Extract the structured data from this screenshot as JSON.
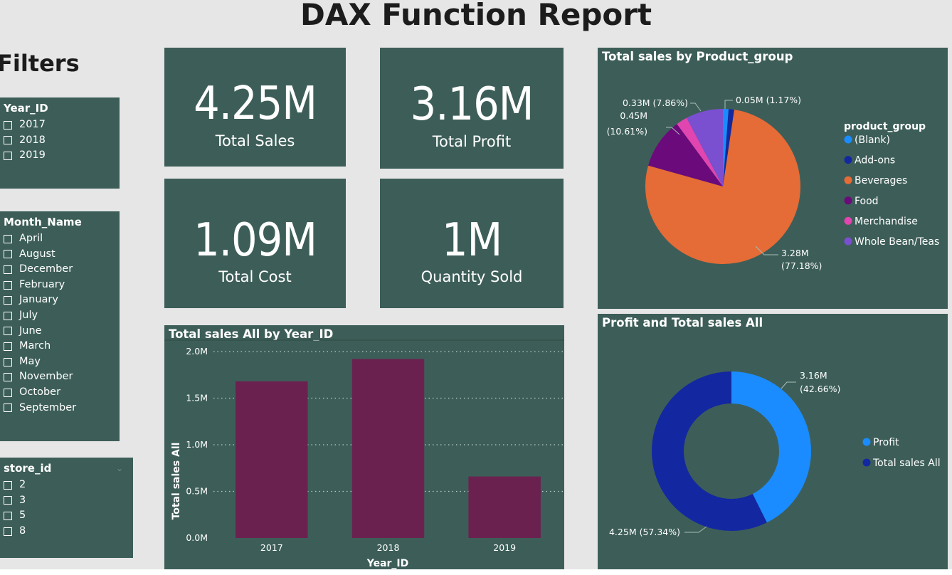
{
  "report": {
    "title": "DAX Function Report",
    "filters_heading": "Filters"
  },
  "slicers": {
    "year": {
      "title": "Year_ID",
      "items": [
        "2017",
        "2018",
        "2019"
      ]
    },
    "month": {
      "title": "Month_Name",
      "items": [
        "April",
        "August",
        "December",
        "February",
        "January",
        "July",
        "June",
        "March",
        "May",
        "November",
        "October",
        "September"
      ]
    },
    "store": {
      "title": "store_id",
      "items": [
        "2",
        "3",
        "5",
        "8"
      ]
    }
  },
  "cards": {
    "total_sales": {
      "value": "4.25M",
      "label": "Total Sales"
    },
    "total_profit": {
      "value": "3.16M",
      "label": "Total Profit"
    },
    "total_cost": {
      "value": "1.09M",
      "label": "Total Cost"
    },
    "quantity_sold": {
      "value": "1M",
      "label": "Quantity Sold"
    }
  },
  "colors": {
    "panel": "#3d5e58",
    "bar": "#6b2150",
    "blank": "#1a8cff",
    "addons": "#1328a0",
    "beverages": "#e56b37",
    "food": "#6b0a7a",
    "merchandise": "#e045b0",
    "whole_bean": "#7a4fd0",
    "profit": "#1a8cff",
    "total_sales_all": "#1328a0"
  },
  "chart_data": [
    {
      "type": "bar",
      "title": "Total sales All by Year_ID",
      "xlabel": "Year_ID",
      "ylabel": "Total sales All",
      "categories": [
        "2017",
        "2018",
        "2019"
      ],
      "values": [
        1.68,
        1.92,
        0.66
      ],
      "unit": "M",
      "ylim": [
        0,
        2.0
      ],
      "yticks": [
        "0.0M",
        "0.5M",
        "1.0M",
        "1.5M",
        "2.0M"
      ],
      "grid": true
    },
    {
      "type": "pie",
      "title": "Total sales by Product_group",
      "legend_title": "product_group",
      "legend_position": "right",
      "slices": [
        {
          "name": "(Blank)",
          "value": 0.05,
          "label": ""
        },
        {
          "name": "Add-ons",
          "value": 0.05,
          "label": "0.05M (1.17%)"
        },
        {
          "name": "Beverages",
          "value": 3.28,
          "label": "3.28M (77.18%)"
        },
        {
          "name": "Food",
          "value": 0.45,
          "label": "0.45M (10.61%)"
        },
        {
          "name": "Merchandise",
          "value": 0.1,
          "label": ""
        },
        {
          "name": "Whole Bean/Teas",
          "value": 0.33,
          "label": "0.33M (7.86%)"
        }
      ]
    },
    {
      "type": "pie",
      "title": "Profit and Total sales All",
      "legend_position": "right",
      "slices": [
        {
          "name": "Profit",
          "value": 3.16,
          "percent": 42.66,
          "label": "3.16M (42.66%)"
        },
        {
          "name": "Total sales All",
          "value": 4.25,
          "percent": 57.34,
          "label": "4.25M (57.34%)"
        }
      ]
    }
  ]
}
